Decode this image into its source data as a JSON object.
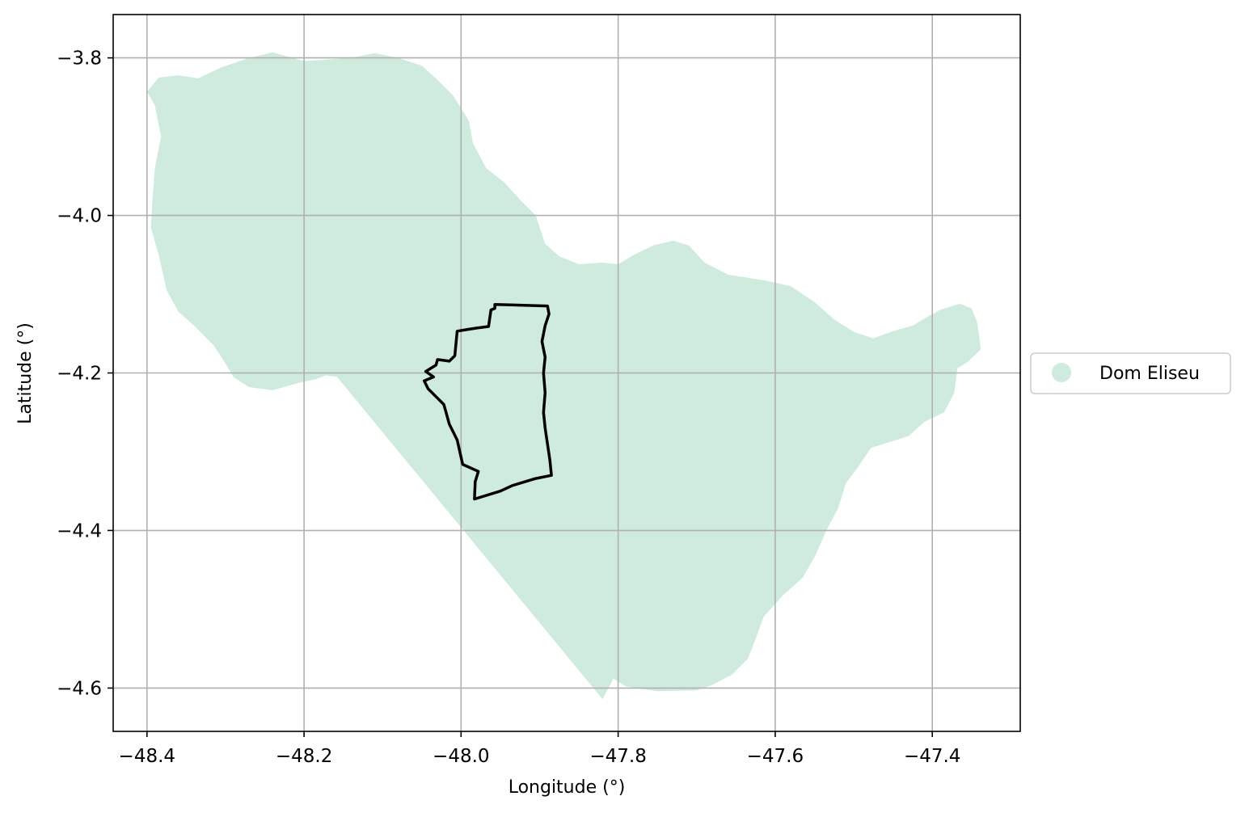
{
  "map": {
    "xlabel": "Longitude (°)",
    "ylabel": "Latitude (°)",
    "xlim": [
      -48.443,
      -47.288
    ],
    "ylim": [
      -4.655,
      -3.745
    ],
    "x_ticks": [
      -48.4,
      -48.2,
      -48.0,
      -47.8,
      -47.6,
      -47.4
    ],
    "y_ticks": [
      -3.8,
      -4.0,
      -4.2,
      -4.4,
      -4.6
    ],
    "x_tick_labels": [
      "−48.4",
      "−48.2",
      "−48.0",
      "−47.8",
      "−47.6",
      "−47.4"
    ],
    "y_tick_labels": [
      "−3.8",
      "−4.0",
      "−4.2",
      "−4.4",
      "−4.6"
    ],
    "grid": true,
    "legend": {
      "placement": "right-outside",
      "entries": [
        {
          "label": "Dom Eliseu",
          "color": "#ceebdd"
        }
      ]
    },
    "colors": {
      "region_fill": "#ceebdd",
      "outline_stroke": "#000000"
    },
    "region_fill_lonlat": [
      [
        -48.4,
        -3.843
      ],
      [
        -48.385,
        -3.825
      ],
      [
        -48.36,
        -3.822
      ],
      [
        -48.335,
        -3.826
      ],
      [
        -48.305,
        -3.812
      ],
      [
        -48.27,
        -3.8
      ],
      [
        -48.24,
        -3.793
      ],
      [
        -48.2,
        -3.804
      ],
      [
        -48.17,
        -3.802
      ],
      [
        -48.14,
        -3.8
      ],
      [
        -48.11,
        -3.794
      ],
      [
        -48.08,
        -3.8
      ],
      [
        -48.05,
        -3.81
      ],
      [
        -48.03,
        -3.828
      ],
      [
        -48.01,
        -3.848
      ],
      [
        -47.99,
        -3.88
      ],
      [
        -47.985,
        -3.908
      ],
      [
        -47.968,
        -3.94
      ],
      [
        -47.945,
        -3.958
      ],
      [
        -47.925,
        -3.98
      ],
      [
        -47.905,
        -4.0
      ],
      [
        -47.893,
        -4.036
      ],
      [
        -47.875,
        -4.052
      ],
      [
        -47.85,
        -4.062
      ],
      [
        -47.82,
        -4.06
      ],
      [
        -47.8,
        -4.062
      ],
      [
        -47.78,
        -4.05
      ],
      [
        -47.755,
        -4.038
      ],
      [
        -47.73,
        -4.032
      ],
      [
        -47.71,
        -4.038
      ],
      [
        -47.69,
        -4.06
      ],
      [
        -47.66,
        -4.075
      ],
      [
        -47.63,
        -4.08
      ],
      [
        -47.61,
        -4.083
      ],
      [
        -47.58,
        -4.09
      ],
      [
        -47.55,
        -4.11
      ],
      [
        -47.525,
        -4.132
      ],
      [
        -47.5,
        -4.148
      ],
      [
        -47.475,
        -4.156
      ],
      [
        -47.45,
        -4.147
      ],
      [
        -47.425,
        -4.14
      ],
      [
        -47.405,
        -4.128
      ],
      [
        -47.39,
        -4.12
      ],
      [
        -47.365,
        -4.112
      ],
      [
        -47.35,
        -4.118
      ],
      [
        -47.343,
        -4.135
      ],
      [
        -47.338,
        -4.17
      ],
      [
        -47.355,
        -4.186
      ],
      [
        -47.368,
        -4.194
      ],
      [
        -47.372,
        -4.225
      ],
      [
        -47.385,
        -4.25
      ],
      [
        -47.41,
        -4.262
      ],
      [
        -47.43,
        -4.28
      ],
      [
        -47.455,
        -4.288
      ],
      [
        -47.478,
        -4.295
      ],
      [
        -47.495,
        -4.32
      ],
      [
        -47.51,
        -4.34
      ],
      [
        -47.52,
        -4.372
      ],
      [
        -47.535,
        -4.4
      ],
      [
        -47.548,
        -4.43
      ],
      [
        -47.565,
        -4.46
      ],
      [
        -47.59,
        -4.482
      ],
      [
        -47.615,
        -4.51
      ],
      [
        -47.625,
        -4.538
      ],
      [
        -47.635,
        -4.563
      ],
      [
        -47.655,
        -4.583
      ],
      [
        -47.68,
        -4.596
      ],
      [
        -47.7,
        -4.603
      ],
      [
        -47.75,
        -4.604
      ],
      [
        -47.79,
        -4.598
      ],
      [
        -47.806,
        -4.588
      ],
      [
        -47.82,
        -4.614
      ],
      [
        -48.158,
        -4.205
      ],
      [
        -48.172,
        -4.203
      ],
      [
        -48.185,
        -4.208
      ],
      [
        -48.205,
        -4.212
      ],
      [
        -48.24,
        -4.222
      ],
      [
        -48.27,
        -4.218
      ],
      [
        -48.29,
        -4.205
      ],
      [
        -48.3,
        -4.188
      ],
      [
        -48.315,
        -4.165
      ],
      [
        -48.34,
        -4.14
      ],
      [
        -48.36,
        -4.122
      ],
      [
        -48.375,
        -4.095
      ],
      [
        -48.385,
        -4.05
      ],
      [
        -48.395,
        -4.015
      ],
      [
        -48.393,
        -3.98
      ],
      [
        -48.39,
        -3.94
      ],
      [
        -48.382,
        -3.9
      ],
      [
        -48.39,
        -3.86
      ]
    ],
    "municipality_outline_lonlat": [
      [
        -47.957,
        -4.113
      ],
      [
        -47.89,
        -4.115
      ],
      [
        -47.888,
        -4.125
      ],
      [
        -47.893,
        -4.14
      ],
      [
        -47.897,
        -4.16
      ],
      [
        -47.893,
        -4.18
      ],
      [
        -47.895,
        -4.2
      ],
      [
        -47.893,
        -4.225
      ],
      [
        -47.895,
        -4.25
      ],
      [
        -47.893,
        -4.27
      ],
      [
        -47.89,
        -4.29
      ],
      [
        -47.887,
        -4.31
      ],
      [
        -47.885,
        -4.33
      ],
      [
        -47.905,
        -4.334
      ],
      [
        -47.935,
        -4.343
      ],
      [
        -47.95,
        -4.35
      ],
      [
        -47.983,
        -4.36
      ],
      [
        -47.982,
        -4.338
      ],
      [
        -47.978,
        -4.325
      ],
      [
        -47.998,
        -4.316
      ],
      [
        -48.005,
        -4.285
      ],
      [
        -48.015,
        -4.265
      ],
      [
        -48.022,
        -4.24
      ],
      [
        -48.03,
        -4.232
      ],
      [
        -48.042,
        -4.22
      ],
      [
        -48.047,
        -4.21
      ],
      [
        -48.035,
        -4.205
      ],
      [
        -48.045,
        -4.198
      ],
      [
        -48.032,
        -4.19
      ],
      [
        -48.03,
        -4.183
      ],
      [
        -48.015,
        -4.185
      ],
      [
        -48.008,
        -4.178
      ],
      [
        -48.005,
        -4.147
      ],
      [
        -47.993,
        -4.145
      ],
      [
        -47.98,
        -4.143
      ],
      [
        -47.965,
        -4.141
      ],
      [
        -47.962,
        -4.12
      ],
      [
        -47.957,
        -4.118
      ]
    ]
  }
}
